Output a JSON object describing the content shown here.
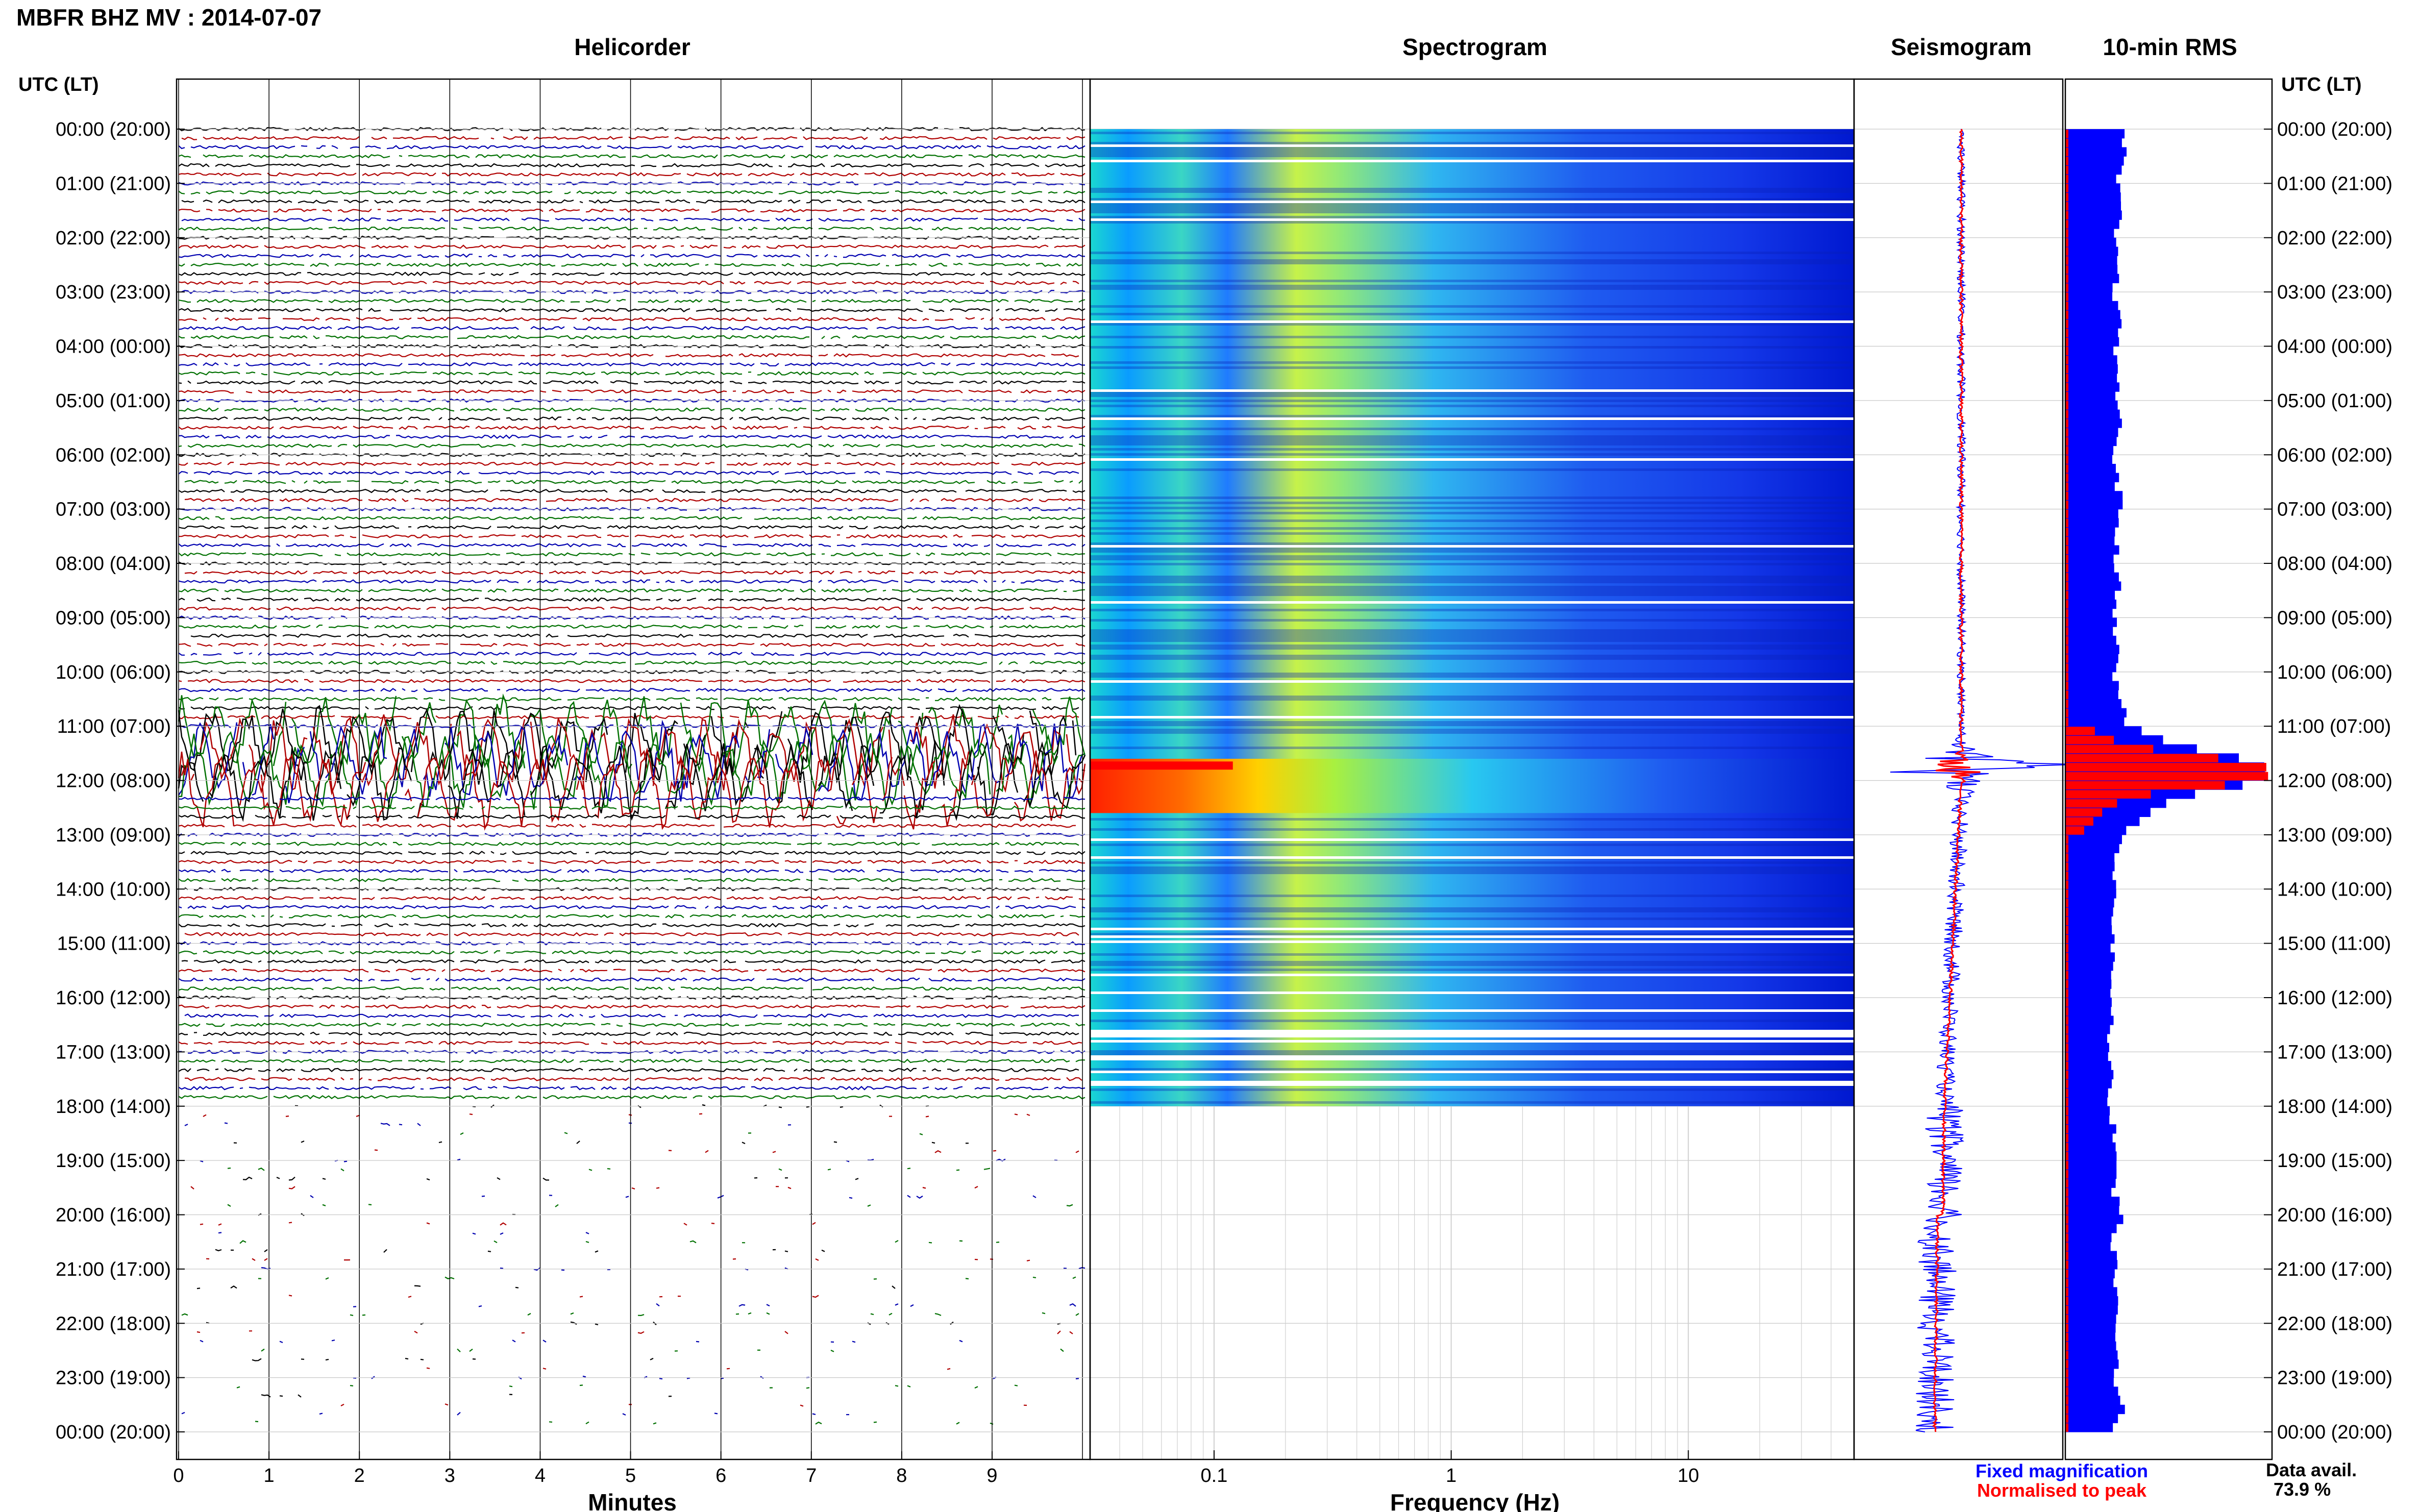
{
  "header": {
    "title": "MBFR BHZ MV : 2014-07-07"
  },
  "time_axis": {
    "left_title": "UTC (LT)",
    "right_title": "UTC (LT)",
    "labels": [
      "00:00 (20:00)",
      "01:00 (21:00)",
      "02:00 (22:00)",
      "03:00 (23:00)",
      "04:00 (00:00)",
      "05:00 (01:00)",
      "06:00 (02:00)",
      "07:00 (03:00)",
      "08:00 (04:00)",
      "09:00 (05:00)",
      "10:00 (06:00)",
      "11:00 (07:00)",
      "12:00 (08:00)",
      "13:00 (09:00)",
      "14:00 (10:00)",
      "15:00 (11:00)",
      "16:00 (12:00)",
      "17:00 (13:00)",
      "18:00 (14:00)",
      "19:00 (15:00)",
      "20:00 (16:00)",
      "21:00 (17:00)",
      "22:00 (18:00)",
      "23:00 (19:00)",
      "00:00 (20:00)"
    ]
  },
  "footer": {
    "legend_fixed": "Fixed magnification",
    "legend_normalised": "Normalised to peak",
    "data_avail_label": "Data avail.",
    "data_avail_value": "73.9 %"
  },
  "colors": {
    "trace_cycle": [
      "#000000",
      "#b00000",
      "#0000b0",
      "#007000"
    ],
    "fixed_magnification": "#0000ff",
    "normalised_to_peak": "#ff0000",
    "spectrogram_background": "#00008f",
    "grid": "#b0b0b0"
  },
  "chart_data": [
    {
      "type": "line",
      "title": "Helicorder",
      "xlabel": "Minutes",
      "ylabel": "",
      "xlim": [
        0,
        10
      ],
      "x_ticks": [
        "0",
        "1",
        "2",
        "3",
        "4",
        "5",
        "6",
        "7",
        "8",
        "9"
      ],
      "rows_per_hour": 6,
      "y_range_hours": [
        0,
        24
      ],
      "trace_color_cycle": [
        "black",
        "dark red",
        "dark blue",
        "dark green"
      ],
      "event_hours": [
        11.1,
        12.2
      ],
      "sparse_data_after_hour": 18
    },
    {
      "type": "heatmap",
      "title": "Spectrogram",
      "xlabel": "Frequency (Hz)",
      "x_scale": "log",
      "xlim": [
        0.03,
        50
      ],
      "x_ticks": [
        "0.1",
        "1",
        "10"
      ],
      "y_range_hours": [
        0,
        24
      ],
      "data_until_hour": 18,
      "peak_energy_hours": [
        11.6,
        12.6
      ],
      "peak_energy_freq_hz": [
        0.03,
        0.2
      ]
    },
    {
      "type": "line",
      "title": "Seismogram",
      "series": [
        {
          "name": "Fixed magnification"
        },
        {
          "name": "Normalised to peak"
        }
      ],
      "y_range_hours": [
        0,
        24
      ],
      "peak_hour": 11.75
    },
    {
      "type": "bar",
      "title": "10-min RMS",
      "orientation": "horizontal",
      "y_range_hours": [
        0,
        24
      ],
      "bin_minutes": 10,
      "series": [
        {
          "name": "Fixed magnification"
        },
        {
          "name": "Normalised to peak"
        }
      ],
      "rms_profile": [
        [
          0.0,
          0.27
        ],
        [
          0.5,
          0.28
        ],
        [
          1.0,
          0.25
        ],
        [
          1.5,
          0.26
        ],
        [
          2.0,
          0.24
        ],
        [
          2.5,
          0.25
        ],
        [
          3.0,
          0.24
        ],
        [
          3.5,
          0.26
        ],
        [
          4.0,
          0.24
        ],
        [
          4.5,
          0.26
        ],
        [
          5.0,
          0.25
        ],
        [
          5.5,
          0.26
        ],
        [
          6.0,
          0.24
        ],
        [
          6.5,
          0.25
        ],
        [
          7.0,
          0.27
        ],
        [
          7.5,
          0.25
        ],
        [
          8.0,
          0.24
        ],
        [
          8.5,
          0.26
        ],
        [
          9.0,
          0.24
        ],
        [
          9.5,
          0.25
        ],
        [
          10.0,
          0.24
        ],
        [
          10.5,
          0.26
        ],
        [
          11.0,
          0.3
        ],
        [
          11.4,
          0.6
        ],
        [
          11.6,
          0.85
        ],
        [
          11.75,
          1.0
        ],
        [
          12.0,
          0.95
        ],
        [
          12.2,
          0.7
        ],
        [
          12.4,
          0.5
        ],
        [
          12.6,
          0.4
        ],
        [
          12.8,
          0.32
        ],
        [
          13.0,
          0.27
        ],
        [
          13.5,
          0.24
        ],
        [
          14.0,
          0.25
        ],
        [
          14.5,
          0.23
        ],
        [
          15.0,
          0.23
        ],
        [
          15.5,
          0.22
        ],
        [
          16.0,
          0.22
        ],
        [
          16.5,
          0.22
        ],
        [
          17.0,
          0.21
        ],
        [
          17.5,
          0.22
        ],
        [
          18.0,
          0.21
        ],
        [
          18.5,
          0.24
        ],
        [
          19.0,
          0.25
        ],
        [
          19.5,
          0.23
        ],
        [
          20.0,
          0.27
        ],
        [
          20.5,
          0.23
        ],
        [
          21.0,
          0.24
        ],
        [
          21.5,
          0.24
        ],
        [
          22.0,
          0.26
        ],
        [
          22.5,
          0.25
        ],
        [
          23.0,
          0.24
        ],
        [
          23.5,
          0.28
        ],
        [
          24.0,
          0.22
        ]
      ]
    }
  ]
}
